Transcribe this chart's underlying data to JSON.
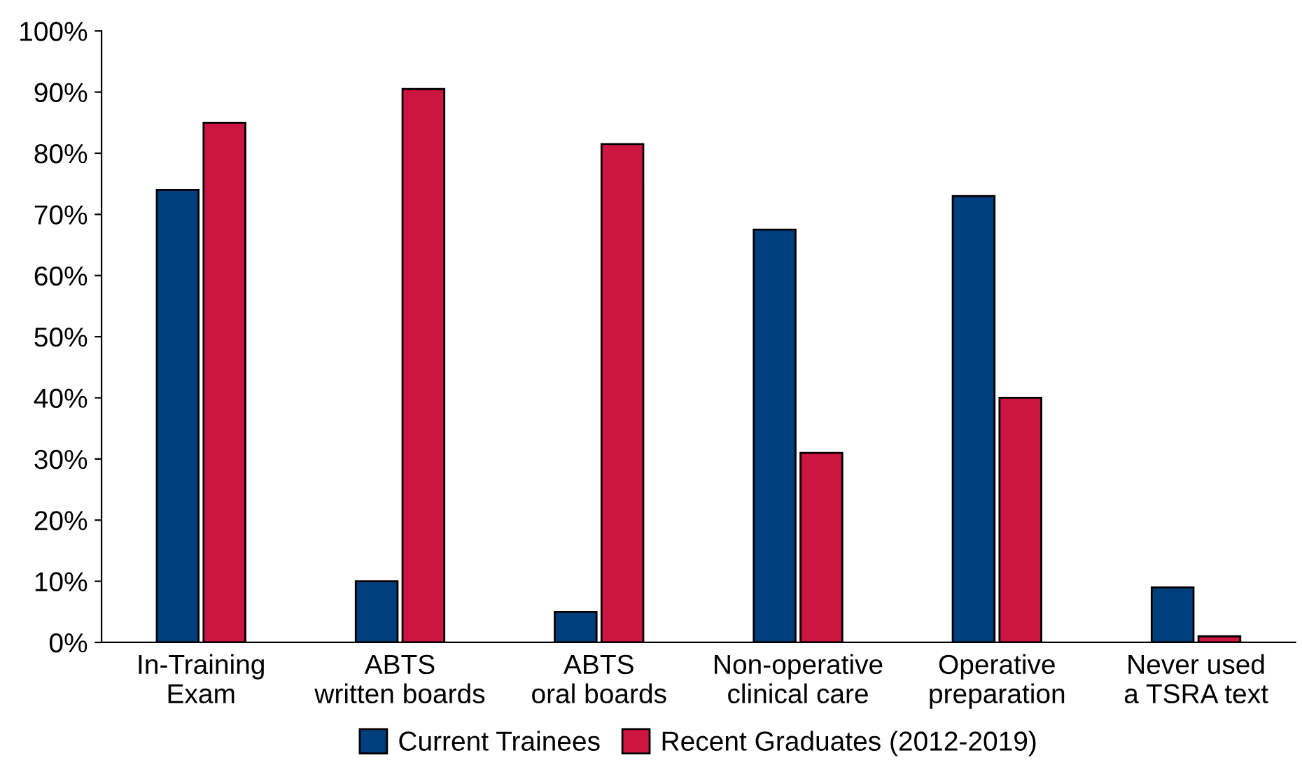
{
  "chart_data": {
    "type": "bar",
    "categories": [
      "In-Training\nExam",
      "ABTS\nwritten boards",
      "ABTS\noral boards",
      "Non-operative\nclinical care",
      "Operative\npreparation",
      "Never used\na TSRA text"
    ],
    "series": [
      {
        "name": "Current Trainees",
        "color": "#003f7d",
        "values": [
          74,
          10,
          5,
          67.5,
          73,
          9
        ]
      },
      {
        "name": "Recent Graduates (2012-2019)",
        "color": "#cc1540",
        "values": [
          85,
          90.5,
          81.5,
          31,
          40,
          1
        ]
      }
    ],
    "ylim": [
      0,
      100
    ],
    "yticks": [
      {
        "value": 0,
        "label": "0%"
      },
      {
        "value": 10,
        "label": "10%"
      },
      {
        "value": 20,
        "label": "20%"
      },
      {
        "value": 30,
        "label": "30%"
      },
      {
        "value": 40,
        "label": "40%"
      },
      {
        "value": 50,
        "label": "50%"
      },
      {
        "value": 60,
        "label": "60%"
      },
      {
        "value": 70,
        "label": "70%"
      },
      {
        "value": 80,
        "label": "80%"
      },
      {
        "value": 90,
        "label": "90%"
      },
      {
        "value": 100,
        "label": "100%"
      }
    ],
    "grid": false,
    "legend": "bottom"
  }
}
